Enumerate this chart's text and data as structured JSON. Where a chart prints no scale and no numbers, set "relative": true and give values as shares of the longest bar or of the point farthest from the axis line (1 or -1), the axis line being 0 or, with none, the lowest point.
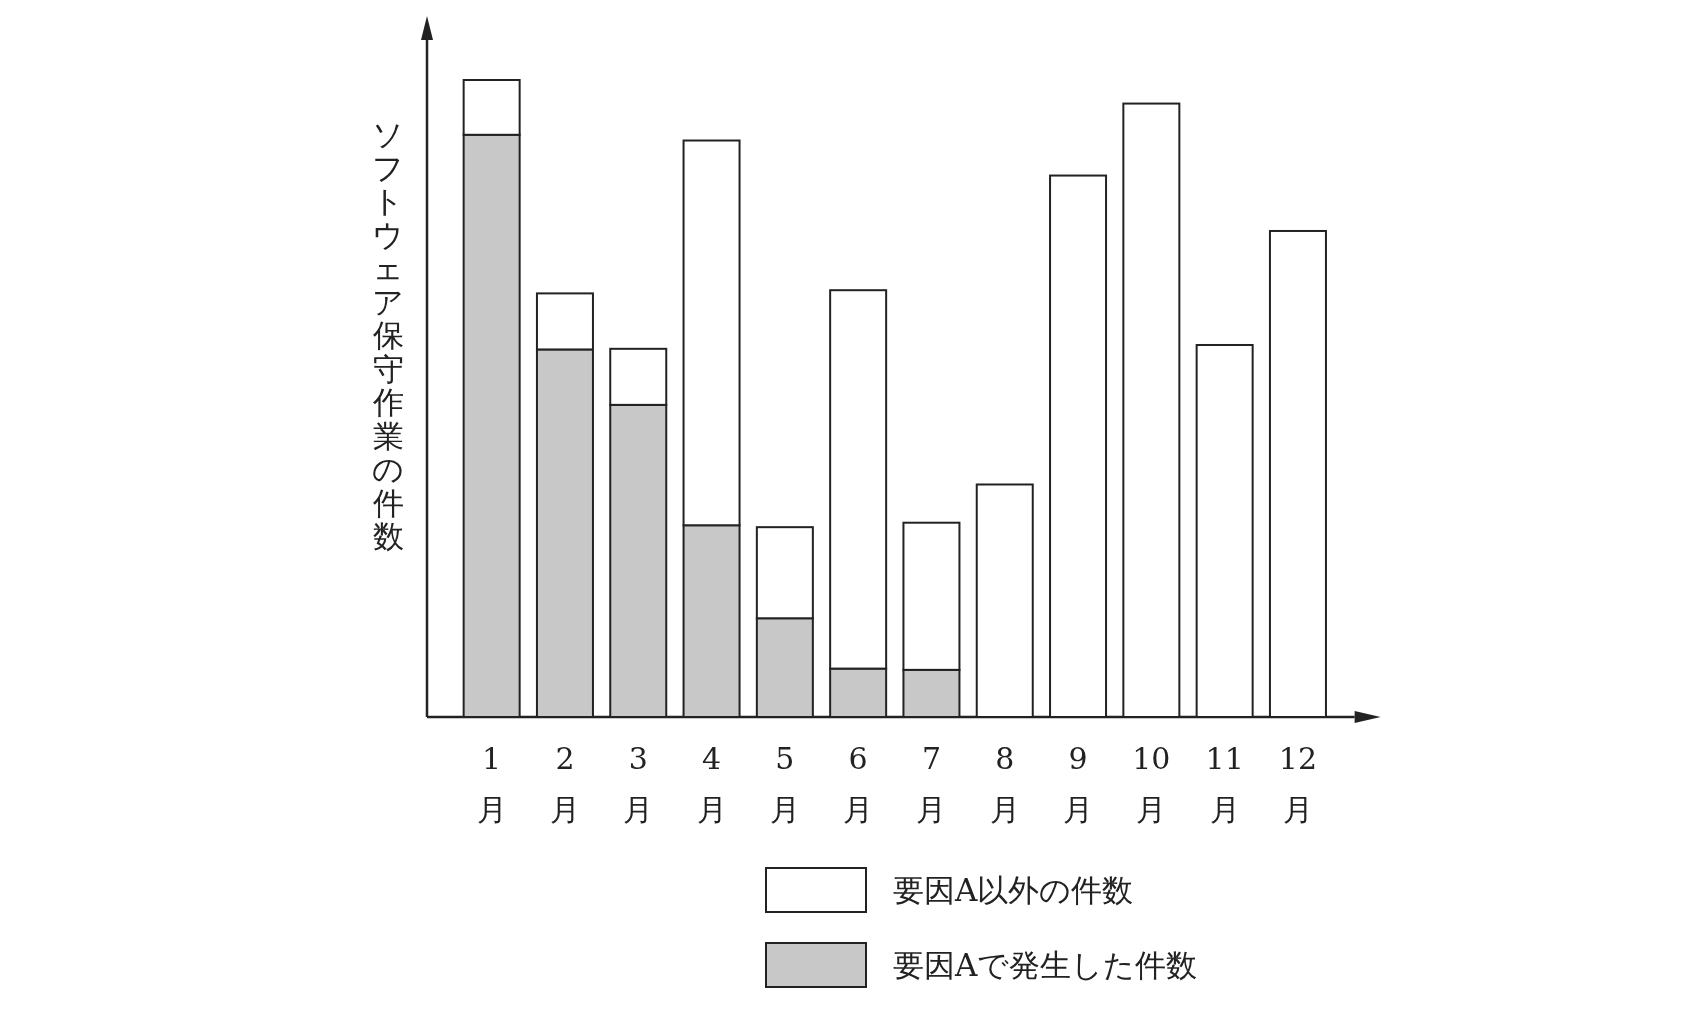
{
  "chart_data": {
    "type": "bar",
    "stacked": true,
    "relative": true,
    "ylabel": "ソフトウェア保守作業の件数",
    "legend": "bottom",
    "categories": [
      "1月",
      "2月",
      "3月",
      "4月",
      "5月",
      "6月",
      "7月",
      "8月",
      "9月",
      "10月",
      "11月",
      "12月"
    ],
    "series": [
      {
        "name": "要因Aで発生した件数",
        "color": "#c8c8c8",
        "values": [
          0.914,
          0.577,
          0.49,
          0.301,
          0.155,
          0.076,
          0.074,
          0,
          0,
          0,
          0,
          0
        ]
      },
      {
        "name": "要因A以外の件数",
        "color": "#ffffff",
        "values": [
          0.086,
          0.088,
          0.088,
          0.604,
          0.143,
          0.594,
          0.231,
          0.365,
          0.85,
          0.963,
          0.584,
          0.763
        ]
      }
    ]
  }
}
